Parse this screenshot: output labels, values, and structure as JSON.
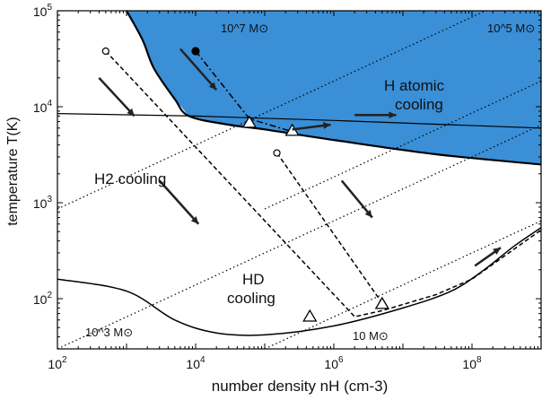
{
  "chart_data": {
    "type": "line",
    "title": "",
    "xlabel": "number density  nH (cm-3)",
    "ylabel": "temperature T(K)",
    "xscale": "log",
    "yscale": "log",
    "xlim": [
      100,
      1000000000
    ],
    "ylim": [
      30,
      100000
    ],
    "x_ticks": [
      {
        "value": 100,
        "label": "10^2"
      },
      {
        "value": 10000,
        "label": "10^4"
      },
      {
        "value": 1000000,
        "label": "10^6"
      },
      {
        "value": 100000000,
        "label": "10^8"
      }
    ],
    "y_ticks": [
      {
        "value": 100,
        "label": "10^2"
      },
      {
        "value": 1000,
        "label": "10^3"
      },
      {
        "value": 10000,
        "label": "10^4"
      },
      {
        "value": 100000,
        "label": "10^5"
      }
    ],
    "colors": {
      "atomic_region": "#3a8fd6",
      "curves": "#000000",
      "frame": "#000000"
    },
    "regions": [
      {
        "name": "atomic",
        "label_line1": "H atomic",
        "label_line2": "cooling",
        "upper": [
          [
            1000,
            100000
          ],
          [
            1000000000,
            100000
          ]
        ],
        "lower": [
          [
            1000000000,
            2500
          ],
          [
            30000000,
            3200
          ],
          [
            1000000,
            4500
          ],
          [
            100000,
            5800
          ],
          [
            30000,
            6500
          ],
          [
            8000,
            8000
          ],
          [
            5000,
            12000
          ],
          [
            2500,
            25000
          ],
          [
            1700,
            50000
          ],
          [
            1000,
            100000
          ]
        ]
      }
    ],
    "region_labels": [
      {
        "text": "H2 cooling",
        "x": 4000,
        "y": 2000
      },
      {
        "text_line1": "HD",
        "text_line2": "cooling",
        "x": 100000,
        "y": 100
      }
    ],
    "series": [
      {
        "kind": "atomic-cooling-line",
        "style": "solid",
        "points": [
          [
            100,
            8500
          ],
          [
            10000,
            8000
          ],
          [
            1000000,
            7200
          ],
          [
            1000000000,
            6000
          ]
        ]
      },
      {
        "kind": "equilibrium-curve",
        "style": "solid",
        "points": [
          [
            100,
            160
          ],
          [
            1000,
            120
          ],
          [
            5000,
            60
          ],
          [
            20000,
            44
          ],
          [
            100000,
            42
          ],
          [
            1000000,
            52
          ],
          [
            10000000,
            80
          ],
          [
            50000000,
            120
          ],
          [
            150000000,
            200
          ],
          [
            400000000,
            350
          ],
          [
            1000000000,
            550
          ]
        ]
      },
      {
        "kind": "track",
        "style": "dashed",
        "points": [
          [
            500,
            38000
          ],
          [
            2000000,
            65
          ],
          [
            5000000,
            75
          ],
          [
            30000000,
            110
          ],
          [
            100000000,
            160
          ],
          [
            1000000000,
            520
          ]
        ],
        "start_marker": "open-circle",
        "end_marker": "triangle"
      },
      {
        "kind": "track",
        "style": "dashed",
        "points": [
          [
            150000,
            3300
          ],
          [
            5000000,
            90
          ]
        ],
        "start_marker": "open-circle",
        "end_marker": "triangle"
      },
      {
        "kind": "track",
        "style": "dash-dot",
        "points": [
          [
            10000,
            38000
          ],
          [
            60000,
            7500
          ],
          [
            250000,
            5500
          ]
        ],
        "start_marker": "filled-circle",
        "end_marker": "triangle"
      }
    ],
    "triangles": [
      {
        "x": 60000,
        "y": 6800
      },
      {
        "x": 250000,
        "y": 5600
      },
      {
        "x": 450000,
        "y": 65
      },
      {
        "x": 5000000,
        "y": 88
      }
    ],
    "jeans_mass_lines": [
      {
        "label": "10^3 M⊙",
        "mass": "10^3"
      },
      {
        "label": "10 M⊙",
        "mass": "10"
      },
      {
        "label": "10^7 M⊙",
        "mass": "10^7"
      },
      {
        "label": "10^5 M⊙",
        "mass": "10^5"
      }
    ],
    "arrows": [
      {
        "from": [
          10000,
          20000
        ],
        "to": [
          10000,
          20000
        ]
      },
      {
        "from": [
          500,
          18000
        ],
        "to": [
          500,
          18000
        ]
      },
      {
        "from": [
          5000,
          1500
        ],
        "to": [
          5000,
          1500
        ]
      },
      {
        "from": [
          1500000,
          1500
        ],
        "to": [
          1500000,
          1500
        ]
      },
      {
        "from": [
          400000,
          6000
        ],
        "to": [
          400000,
          6000
        ]
      },
      {
        "from": [
          3000000,
          8000
        ],
        "to": [
          3000000,
          8000
        ]
      },
      {
        "from": [
          100000000,
          300
        ],
        "to": [
          100000000,
          300
        ]
      }
    ]
  }
}
